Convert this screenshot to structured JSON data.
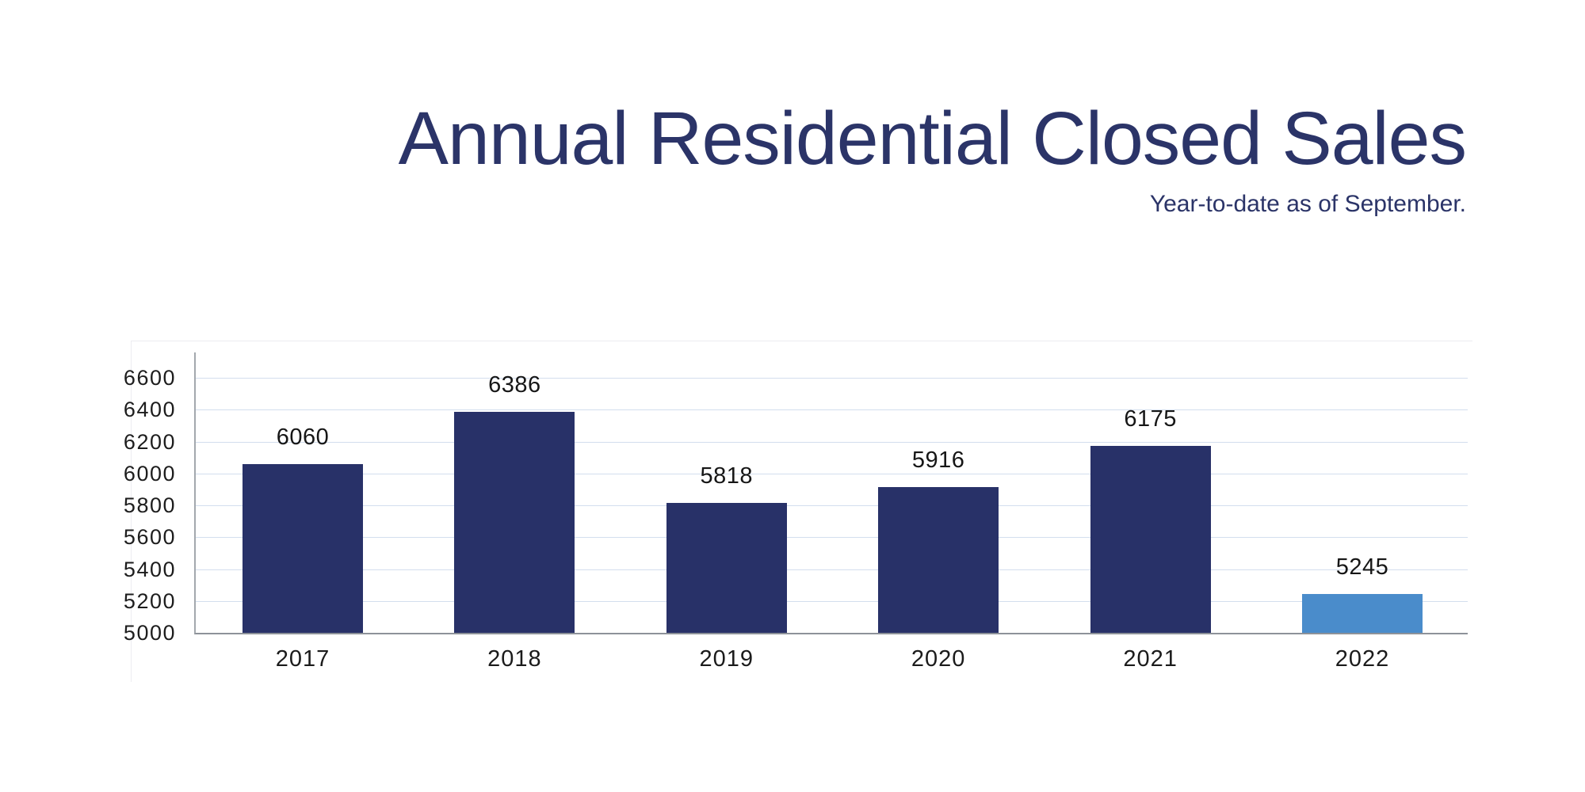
{
  "page": {
    "title": "Annual Residential Closed Sales",
    "subtitle": "Year-to-date as of September."
  },
  "colors": {
    "title_navy": "#2b3468",
    "bar_navy": "#283168",
    "bar_highlight_blue": "#4a8ccb",
    "gridline": "#d3deee",
    "y_axis_line": "#a3a8ae",
    "x_axis_line": "#8d9299",
    "tick_text": "#1d1d1d"
  },
  "chart_data": {
    "type": "bar",
    "title": "Annual Residential Closed Sales",
    "subtitle": "Year-to-date as of September.",
    "categories": [
      "2017",
      "2018",
      "2019",
      "2020",
      "2021",
      "2022"
    ],
    "values": [
      6060,
      6386,
      5818,
      5916,
      6175,
      5245
    ],
    "data_labels": [
      "6060",
      "6386",
      "5818",
      "5916",
      "6175",
      "5245"
    ],
    "bar_colors": [
      "#283168",
      "#283168",
      "#283168",
      "#283168",
      "#283168",
      "#4a8ccb"
    ],
    "xlabel": "",
    "ylabel": "",
    "ylim": [
      5000,
      6760
    ],
    "yticks": [
      5000,
      5200,
      5400,
      5600,
      5800,
      6000,
      6200,
      6400,
      6600
    ],
    "grid": "horizontal",
    "legend": "none",
    "highlight_note": "2022 bar shown in light blue; all other bars navy"
  }
}
